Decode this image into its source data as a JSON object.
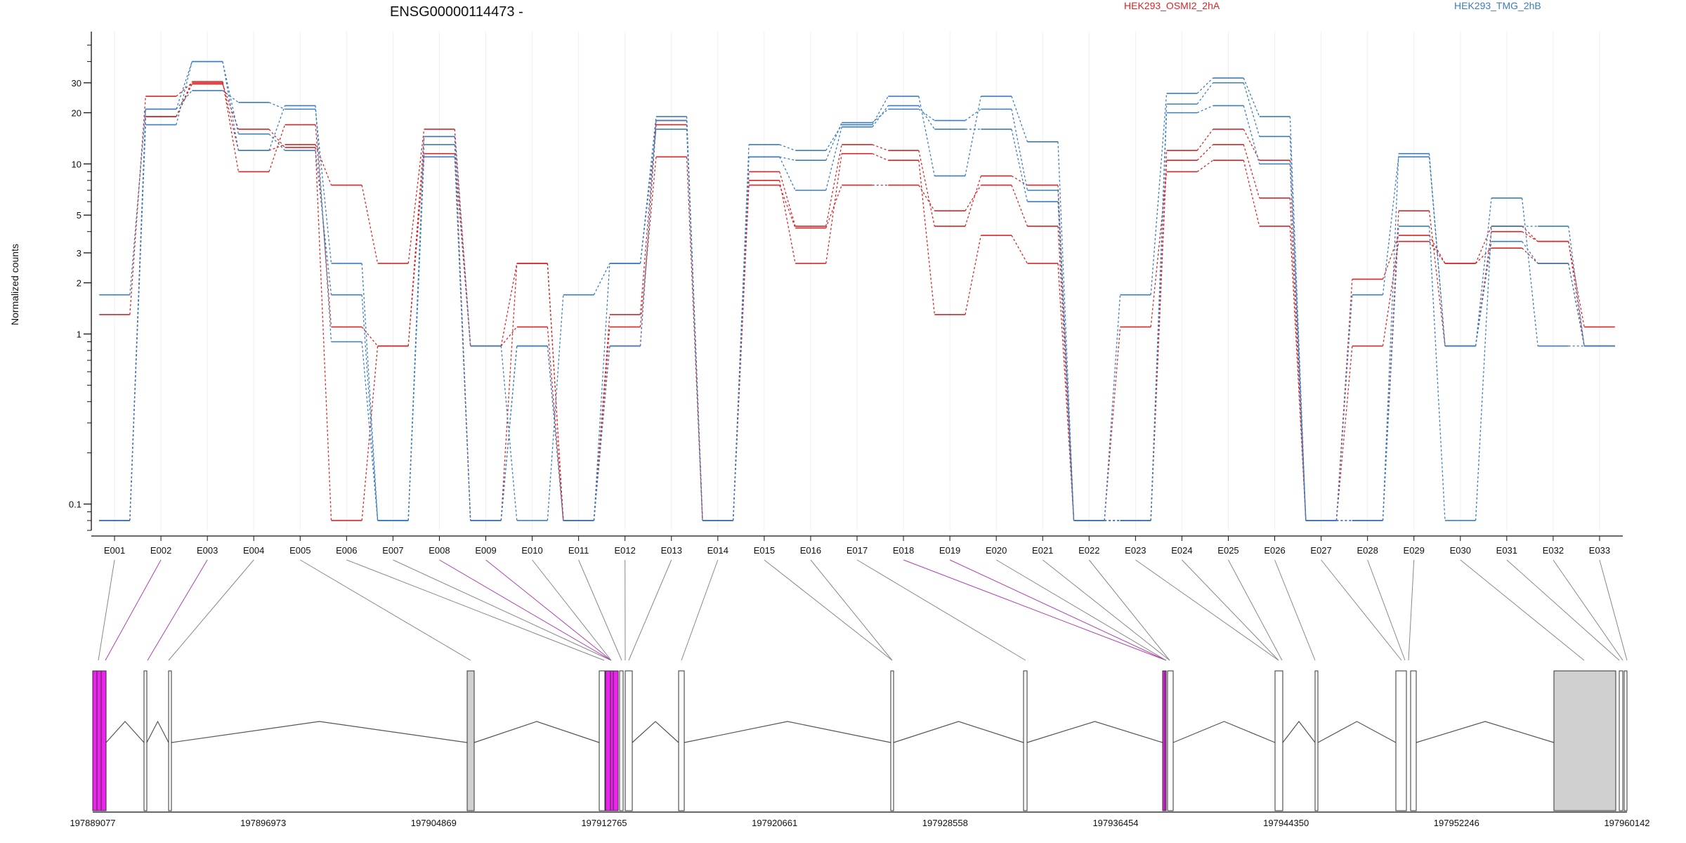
{
  "chart_data": {
    "type": "line",
    "title": "ENSG00000114473 -",
    "ylabel": "Normalized counts",
    "yscale": "log",
    "ylim": [
      0.07,
      60
    ],
    "yticks": [
      {
        "value": 0.1,
        "label": "0.1"
      },
      {
        "value": 1,
        "label": "1"
      },
      {
        "value": 2,
        "label": "2"
      },
      {
        "value": 3,
        "label": "3"
      },
      {
        "value": 5,
        "label": "5"
      },
      {
        "value": 10,
        "label": "10"
      },
      {
        "value": 20,
        "label": "20"
      },
      {
        "value": 30,
        "label": "30"
      }
    ],
    "grid": "vertical",
    "legend_position": "top-right",
    "categories": [
      "E001",
      "E002",
      "E003",
      "E004",
      "E005",
      "E006",
      "E007",
      "E008",
      "E009",
      "E010",
      "E011",
      "E012",
      "E013",
      "E014",
      "E015",
      "E016",
      "E017",
      "E018",
      "E019",
      "E020",
      "E021",
      "E022",
      "E023",
      "E024",
      "E025",
      "E026",
      "E027",
      "E028",
      "E029",
      "E030",
      "E031",
      "E032",
      "E033"
    ],
    "legend": [
      {
        "label": "HEK293_OSMI2_2hA",
        "color": "#d62728"
      },
      {
        "label": "HEK293_TMG_2hB",
        "color": "#3a7dbf"
      }
    ],
    "series": [
      {
        "group": 0,
        "color": "#d62728",
        "values": [
          1.3,
          25,
          30,
          12,
          13,
          7.5,
          2.6,
          16,
          0.85,
          2.6,
          0.08,
          1.3,
          18,
          0.08,
          9,
          4.3,
          13,
          12,
          4.3,
          8.5,
          7.5,
          0.08,
          0.08,
          12,
          16,
          10.5,
          0.08,
          0.85,
          3.5,
          2.6,
          4.3,
          3.5,
          1.1
        ]
      },
      {
        "group": 0,
        "color": "#d62728",
        "values": [
          0.08,
          19,
          30.5,
          9,
          17,
          1.1,
          0.85,
          11.5,
          0.85,
          1.1,
          0.08,
          1.1,
          11,
          0.08,
          8,
          2.6,
          11.5,
          10.5,
          1.3,
          3.8,
          2.6,
          0.08,
          1.1,
          9,
          10.5,
          4.3,
          0.08,
          2.1,
          3.8,
          2.6,
          3.2,
          2.6,
          0.85
        ]
      },
      {
        "group": 0,
        "color": "#d62728",
        "values": [
          0.08,
          19,
          29.5,
          16,
          12.5,
          0.08,
          0.85,
          14.5,
          0.08,
          2.6,
          0.08,
          0.85,
          17,
          0.08,
          7.5,
          4.2,
          7.5,
          7.5,
          5.3,
          7.5,
          4.3,
          0.08,
          0.08,
          10.5,
          13,
          6.3,
          0.08,
          0.08,
          5.3,
          0.85,
          4,
          3.5,
          0.85
        ]
      },
      {
        "group": 1,
        "color": "#3a7dbf",
        "values": [
          1.7,
          21,
          27,
          23,
          21,
          2.6,
          0.08,
          14.5,
          0.85,
          0.08,
          1.7,
          2.6,
          19,
          0.08,
          13,
          12,
          17,
          25,
          8.5,
          25,
          13.5,
          0.08,
          1.7,
          26,
          32,
          19,
          0.08,
          1.7,
          11,
          0.85,
          6.3,
          0.85,
          0.85
        ]
      },
      {
        "group": 1,
        "color": "#3a7dbf",
        "values": [
          0.08,
          17,
          40,
          15,
          12,
          1.7,
          0.08,
          13,
          0.08,
          0.85,
          0.08,
          2.6,
          16,
          0.08,
          11,
          7,
          16.5,
          22,
          16,
          16,
          6,
          0.08,
          0.08,
          22.5,
          30,
          14.5,
          0.08,
          0.08,
          11.5,
          0.85,
          3.5,
          2.6,
          0.85
        ]
      },
      {
        "group": 1,
        "color": "#3a7dbf",
        "values": [
          0.08,
          21,
          40,
          12,
          22,
          0.9,
          0.08,
          11,
          0.08,
          0.85,
          0.08,
          0.85,
          18,
          0.08,
          11,
          10.5,
          17.5,
          21,
          18,
          21,
          7,
          0.08,
          0.08,
          20,
          22,
          10,
          0.08,
          0.08,
          4.3,
          0.08,
          4.3,
          4.3,
          0.85
        ]
      }
    ]
  },
  "gene_model": {
    "coordinate_ticks": [
      "197889077",
      "197896973",
      "197904869",
      "197912765",
      "197920661",
      "197928558",
      "197936454",
      "197944350",
      "197952246",
      "197960142"
    ]
  },
  "colors": {
    "highlight": "#ee22ee",
    "utr": "#d0d0d0",
    "connector": "#888888",
    "connector_highlight": "#b040b0"
  }
}
